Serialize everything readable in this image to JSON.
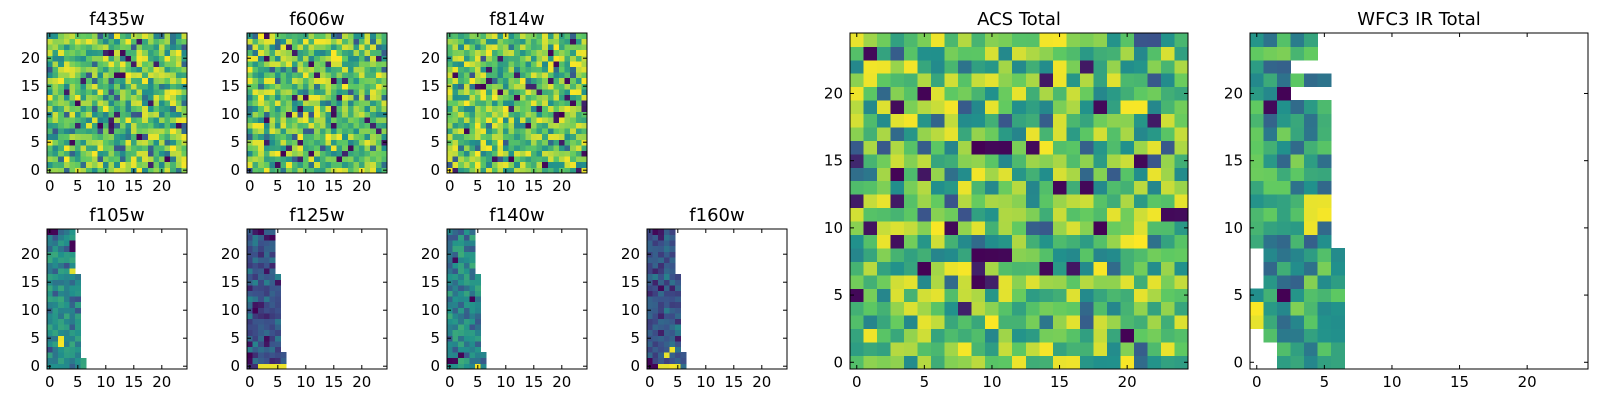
{
  "figure": {
    "colormap": "viridis",
    "colormap_stops": [
      "#440154",
      "#3b528b",
      "#21918c",
      "#5ec962",
      "#fde725"
    ]
  },
  "chart_data": [
    {
      "type": "heatmap",
      "title": "f435w",
      "grid_size": 25,
      "xlim": [
        0,
        25
      ],
      "ylim": [
        0,
        25
      ],
      "xticks": [
        0,
        5,
        10,
        15,
        20
      ],
      "yticks": [
        0,
        5,
        10,
        15,
        20
      ],
      "coverage": "full",
      "distribution": "speckle",
      "seed": 11,
      "dark_pixels": [
        [
          12,
          17
        ],
        [
          13,
          17
        ],
        [
          16,
          6
        ],
        [
          21,
          2
        ],
        [
          5,
          12
        ],
        [
          9,
          8
        ]
      ]
    },
    {
      "type": "heatmap",
      "title": "f606w",
      "grid_size": 25,
      "xlim": [
        0,
        25
      ],
      "ylim": [
        0,
        25
      ],
      "xticks": [
        0,
        5,
        10,
        15,
        20
      ],
      "yticks": [
        0,
        5,
        10,
        15,
        20
      ],
      "coverage": "full",
      "distribution": "speckle",
      "seed": 23,
      "dark_pixels": [
        [
          15,
          16
        ],
        [
          6,
          3
        ],
        [
          15,
          10
        ],
        [
          18,
          4
        ],
        [
          3,
          20
        ],
        [
          10,
          13
        ]
      ]
    },
    {
      "type": "heatmap",
      "title": "f814w",
      "grid_size": 25,
      "xlim": [
        0,
        25
      ],
      "ylim": [
        0,
        25
      ],
      "xticks": [
        0,
        5,
        10,
        15,
        20
      ],
      "yticks": [
        0,
        5,
        10,
        15,
        20
      ],
      "coverage": "full",
      "distribution": "speckle",
      "seed": 37,
      "dark_pixels": [
        [
          6,
          15
        ],
        [
          12,
          13
        ],
        [
          19,
          19
        ],
        [
          11,
          2
        ],
        [
          3,
          7
        ],
        [
          20,
          10
        ]
      ]
    },
    {
      "type": "heatmap",
      "title": "f105w",
      "grid_size": 25,
      "xlim": [
        0,
        25
      ],
      "ylim": [
        0,
        25
      ],
      "xticks": [
        0,
        5,
        10,
        15,
        20
      ],
      "yticks": [
        0,
        5,
        10,
        15,
        20
      ],
      "coverage": "partial",
      "distribution": "teal",
      "seed": 41,
      "row_widths": [
        7,
        7,
        6,
        6,
        6,
        6,
        6,
        6,
        6,
        6,
        6,
        6,
        6,
        6,
        6,
        6,
        6,
        5,
        5,
        5,
        5,
        5,
        5,
        5,
        5
      ],
      "bright_pixels": [
        [
          2,
          4
        ],
        [
          2,
          5
        ],
        [
          4,
          17
        ]
      ],
      "dark_pixels": [
        [
          0,
          24
        ],
        [
          1,
          24
        ],
        [
          4,
          22
        ],
        [
          4,
          21
        ]
      ]
    },
    {
      "type": "heatmap",
      "title": "f125w",
      "grid_size": 25,
      "xlim": [
        0,
        25
      ],
      "ylim": [
        0,
        25
      ],
      "xticks": [
        0,
        5,
        10,
        15,
        20
      ],
      "yticks": [
        0,
        5,
        10,
        15,
        20
      ],
      "coverage": "partial",
      "distribution": "blue",
      "seed": 53,
      "row_widths": [
        7,
        7,
        7,
        6,
        6,
        6,
        6,
        6,
        6,
        6,
        6,
        6,
        6,
        6,
        6,
        6,
        6,
        5,
        5,
        5,
        5,
        5,
        5,
        5,
        5
      ],
      "bright_row": 0,
      "dark_pixels": [
        [
          0,
          1
        ],
        [
          0,
          2
        ],
        [
          2,
          24
        ],
        [
          4,
          23
        ],
        [
          1,
          10
        ],
        [
          3,
          5
        ]
      ]
    },
    {
      "type": "heatmap",
      "title": "f140w",
      "grid_size": 25,
      "xlim": [
        0,
        25
      ],
      "ylim": [
        0,
        25
      ],
      "xticks": [
        0,
        5,
        10,
        15,
        20
      ],
      "yticks": [
        0,
        5,
        10,
        15,
        20
      ],
      "coverage": "partial",
      "distribution": "green",
      "seed": 67,
      "row_widths": [
        7,
        7,
        7,
        6,
        6,
        6,
        6,
        6,
        6,
        6,
        6,
        6,
        6,
        6,
        6,
        6,
        6,
        5,
        5,
        5,
        5,
        5,
        5,
        5,
        5
      ],
      "bright_pixels": [
        [
          5,
          0
        ]
      ],
      "dark_pixels": [
        [
          0,
          1
        ],
        [
          1,
          1
        ],
        [
          2,
          2
        ],
        [
          1,
          19
        ],
        [
          4,
          12
        ]
      ]
    },
    {
      "type": "heatmap",
      "title": "f160w",
      "grid_size": 25,
      "xlim": [
        0,
        25
      ],
      "ylim": [
        0,
        25
      ],
      "xticks": [
        0,
        5,
        10,
        15,
        20
      ],
      "yticks": [
        0,
        5,
        10,
        15,
        20
      ],
      "coverage": "partial",
      "distribution": "blue",
      "seed": 79,
      "row_widths": [
        7,
        7,
        7,
        6,
        6,
        6,
        6,
        6,
        6,
        6,
        6,
        6,
        6,
        6,
        6,
        6,
        6,
        5,
        5,
        5,
        5,
        5,
        5,
        5,
        5
      ],
      "bright_pixels": [
        [
          2,
          0
        ],
        [
          3,
          0
        ],
        [
          4,
          0
        ],
        [
          5,
          0
        ],
        [
          4,
          3
        ],
        [
          3,
          2
        ]
      ],
      "dark_pixels": [
        [
          0,
          0
        ],
        [
          1,
          0
        ],
        [
          0,
          1
        ],
        [
          1,
          24
        ],
        [
          2,
          14
        ]
      ]
    },
    {
      "type": "heatmap",
      "title": "ACS Total",
      "grid_size": 25,
      "xlim": [
        0,
        25
      ],
      "ylim": [
        0,
        25
      ],
      "xticks": [
        0,
        5,
        10,
        15,
        20
      ],
      "yticks": [
        0,
        5,
        10,
        15,
        20
      ],
      "coverage": "full",
      "distribution": "speckle",
      "seed": 97,
      "dark_pixels": [
        [
          1,
          23
        ],
        [
          5,
          20
        ],
        [
          9,
          16
        ],
        [
          10,
          16
        ],
        [
          11,
          16
        ],
        [
          13,
          16
        ],
        [
          18,
          10
        ],
        [
          24,
          11
        ],
        [
          23,
          11
        ],
        [
          9,
          6
        ],
        [
          11,
          8
        ],
        [
          9,
          8
        ],
        [
          15,
          13
        ],
        [
          20,
          2
        ],
        [
          5,
          7
        ],
        [
          14,
          7
        ],
        [
          18,
          19
        ],
        [
          21,
          15
        ],
        [
          0,
          5
        ],
        [
          3,
          14
        ],
        [
          10,
          8
        ],
        [
          7,
          10
        ]
      ]
    },
    {
      "type": "heatmap",
      "title": "WFC3 IR Total",
      "grid_size": 25,
      "xlim": [
        0,
        25
      ],
      "ylim": [
        0,
        25
      ],
      "xticks": [
        0,
        5,
        10,
        15,
        20
      ],
      "yticks": [
        0,
        5,
        10,
        15,
        20
      ],
      "coverage": "partial",
      "distribution": "ir",
      "seed": 101,
      "row_widths": [
        7,
        7,
        7,
        7,
        7,
        7,
        7,
        7,
        7,
        7,
        7,
        7,
        7,
        7,
        6,
        6,
        6,
        6,
        6,
        6,
        6,
        6,
        6,
        5,
        5
      ],
      "row_starts": [
        2,
        2,
        1,
        0,
        0,
        0,
        0,
        0,
        0,
        0,
        0,
        0,
        0,
        0,
        0,
        0,
        0,
        0,
        0,
        0,
        0,
        0,
        0,
        0,
        0
      ],
      "missing": [
        [
          0,
          6
        ],
        [
          0,
          7
        ],
        [
          0,
          8
        ],
        [
          6,
          9
        ],
        [
          6,
          10
        ],
        [
          6,
          11
        ],
        [
          6,
          12
        ],
        [
          6,
          13
        ],
        [
          3,
          20
        ],
        [
          4,
          20
        ],
        [
          5,
          20
        ],
        [
          3,
          22
        ],
        [
          4,
          22
        ],
        [
          5,
          22
        ],
        [
          6,
          22
        ]
      ],
      "bright_pixels": [
        [
          4,
          10
        ],
        [
          4,
          11
        ],
        [
          4,
          12
        ],
        [
          5,
          11
        ],
        [
          5,
          12
        ],
        [
          0,
          3
        ],
        [
          0,
          4
        ]
      ],
      "dark_pixels": [
        [
          0,
          7
        ],
        [
          2,
          5
        ],
        [
          2,
          20
        ],
        [
          1,
          19
        ]
      ]
    }
  ]
}
